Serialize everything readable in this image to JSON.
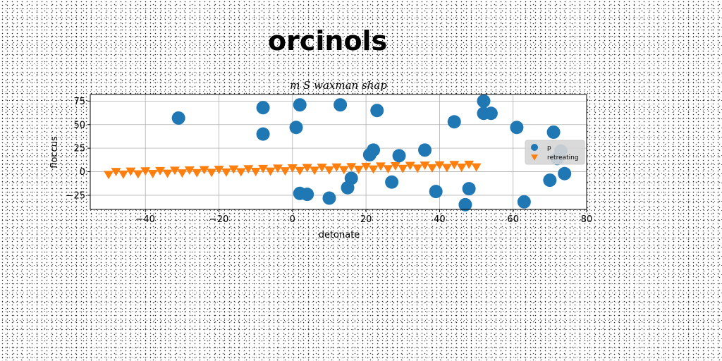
{
  "page": {
    "title": "orcinols"
  },
  "chart_data": {
    "type": "scatter",
    "title": "m S waxman shap",
    "xlabel": "detonate",
    "ylabel": "floccus",
    "xlim": [
      -55,
      80
    ],
    "ylim": [
      -40,
      82
    ],
    "xticks": [
      -40,
      -20,
      0,
      20,
      40,
      60,
      80
    ],
    "yticks": [
      -25,
      0,
      25,
      50,
      75
    ],
    "grid": true,
    "legend_position": "right",
    "series": [
      {
        "name": "p",
        "marker": "circle",
        "color": "#1f77b4",
        "points": [
          [
            -31,
            57
          ],
          [
            -8,
            68
          ],
          [
            -8,
            40
          ],
          [
            1,
            47
          ],
          [
            2,
            71
          ],
          [
            13,
            71
          ],
          [
            23,
            65
          ],
          [
            2,
            -23
          ],
          [
            4,
            -24
          ],
          [
            10,
            -28
          ],
          [
            15,
            -17
          ],
          [
            16,
            -7
          ],
          [
            21,
            18
          ],
          [
            22,
            23
          ],
          [
            27,
            -11
          ],
          [
            29,
            17
          ],
          [
            36,
            23
          ],
          [
            39,
            -21
          ],
          [
            44,
            53
          ],
          [
            47,
            -35
          ],
          [
            48,
            -18
          ],
          [
            52,
            75
          ],
          [
            52,
            62
          ],
          [
            54,
            62
          ],
          [
            61,
            47
          ],
          [
            63,
            -32
          ],
          [
            70,
            -9
          ],
          [
            71,
            42
          ],
          [
            72,
            14
          ],
          [
            73,
            22
          ],
          [
            74,
            -2
          ]
        ]
      },
      {
        "name": "retreating",
        "marker": "triangle-down",
        "color": "#ff7f0e",
        "x_start": -50,
        "x_end": 50,
        "x_step": 2,
        "slope": 0.08,
        "intercept": 1,
        "zigzag": 3
      }
    ]
  }
}
